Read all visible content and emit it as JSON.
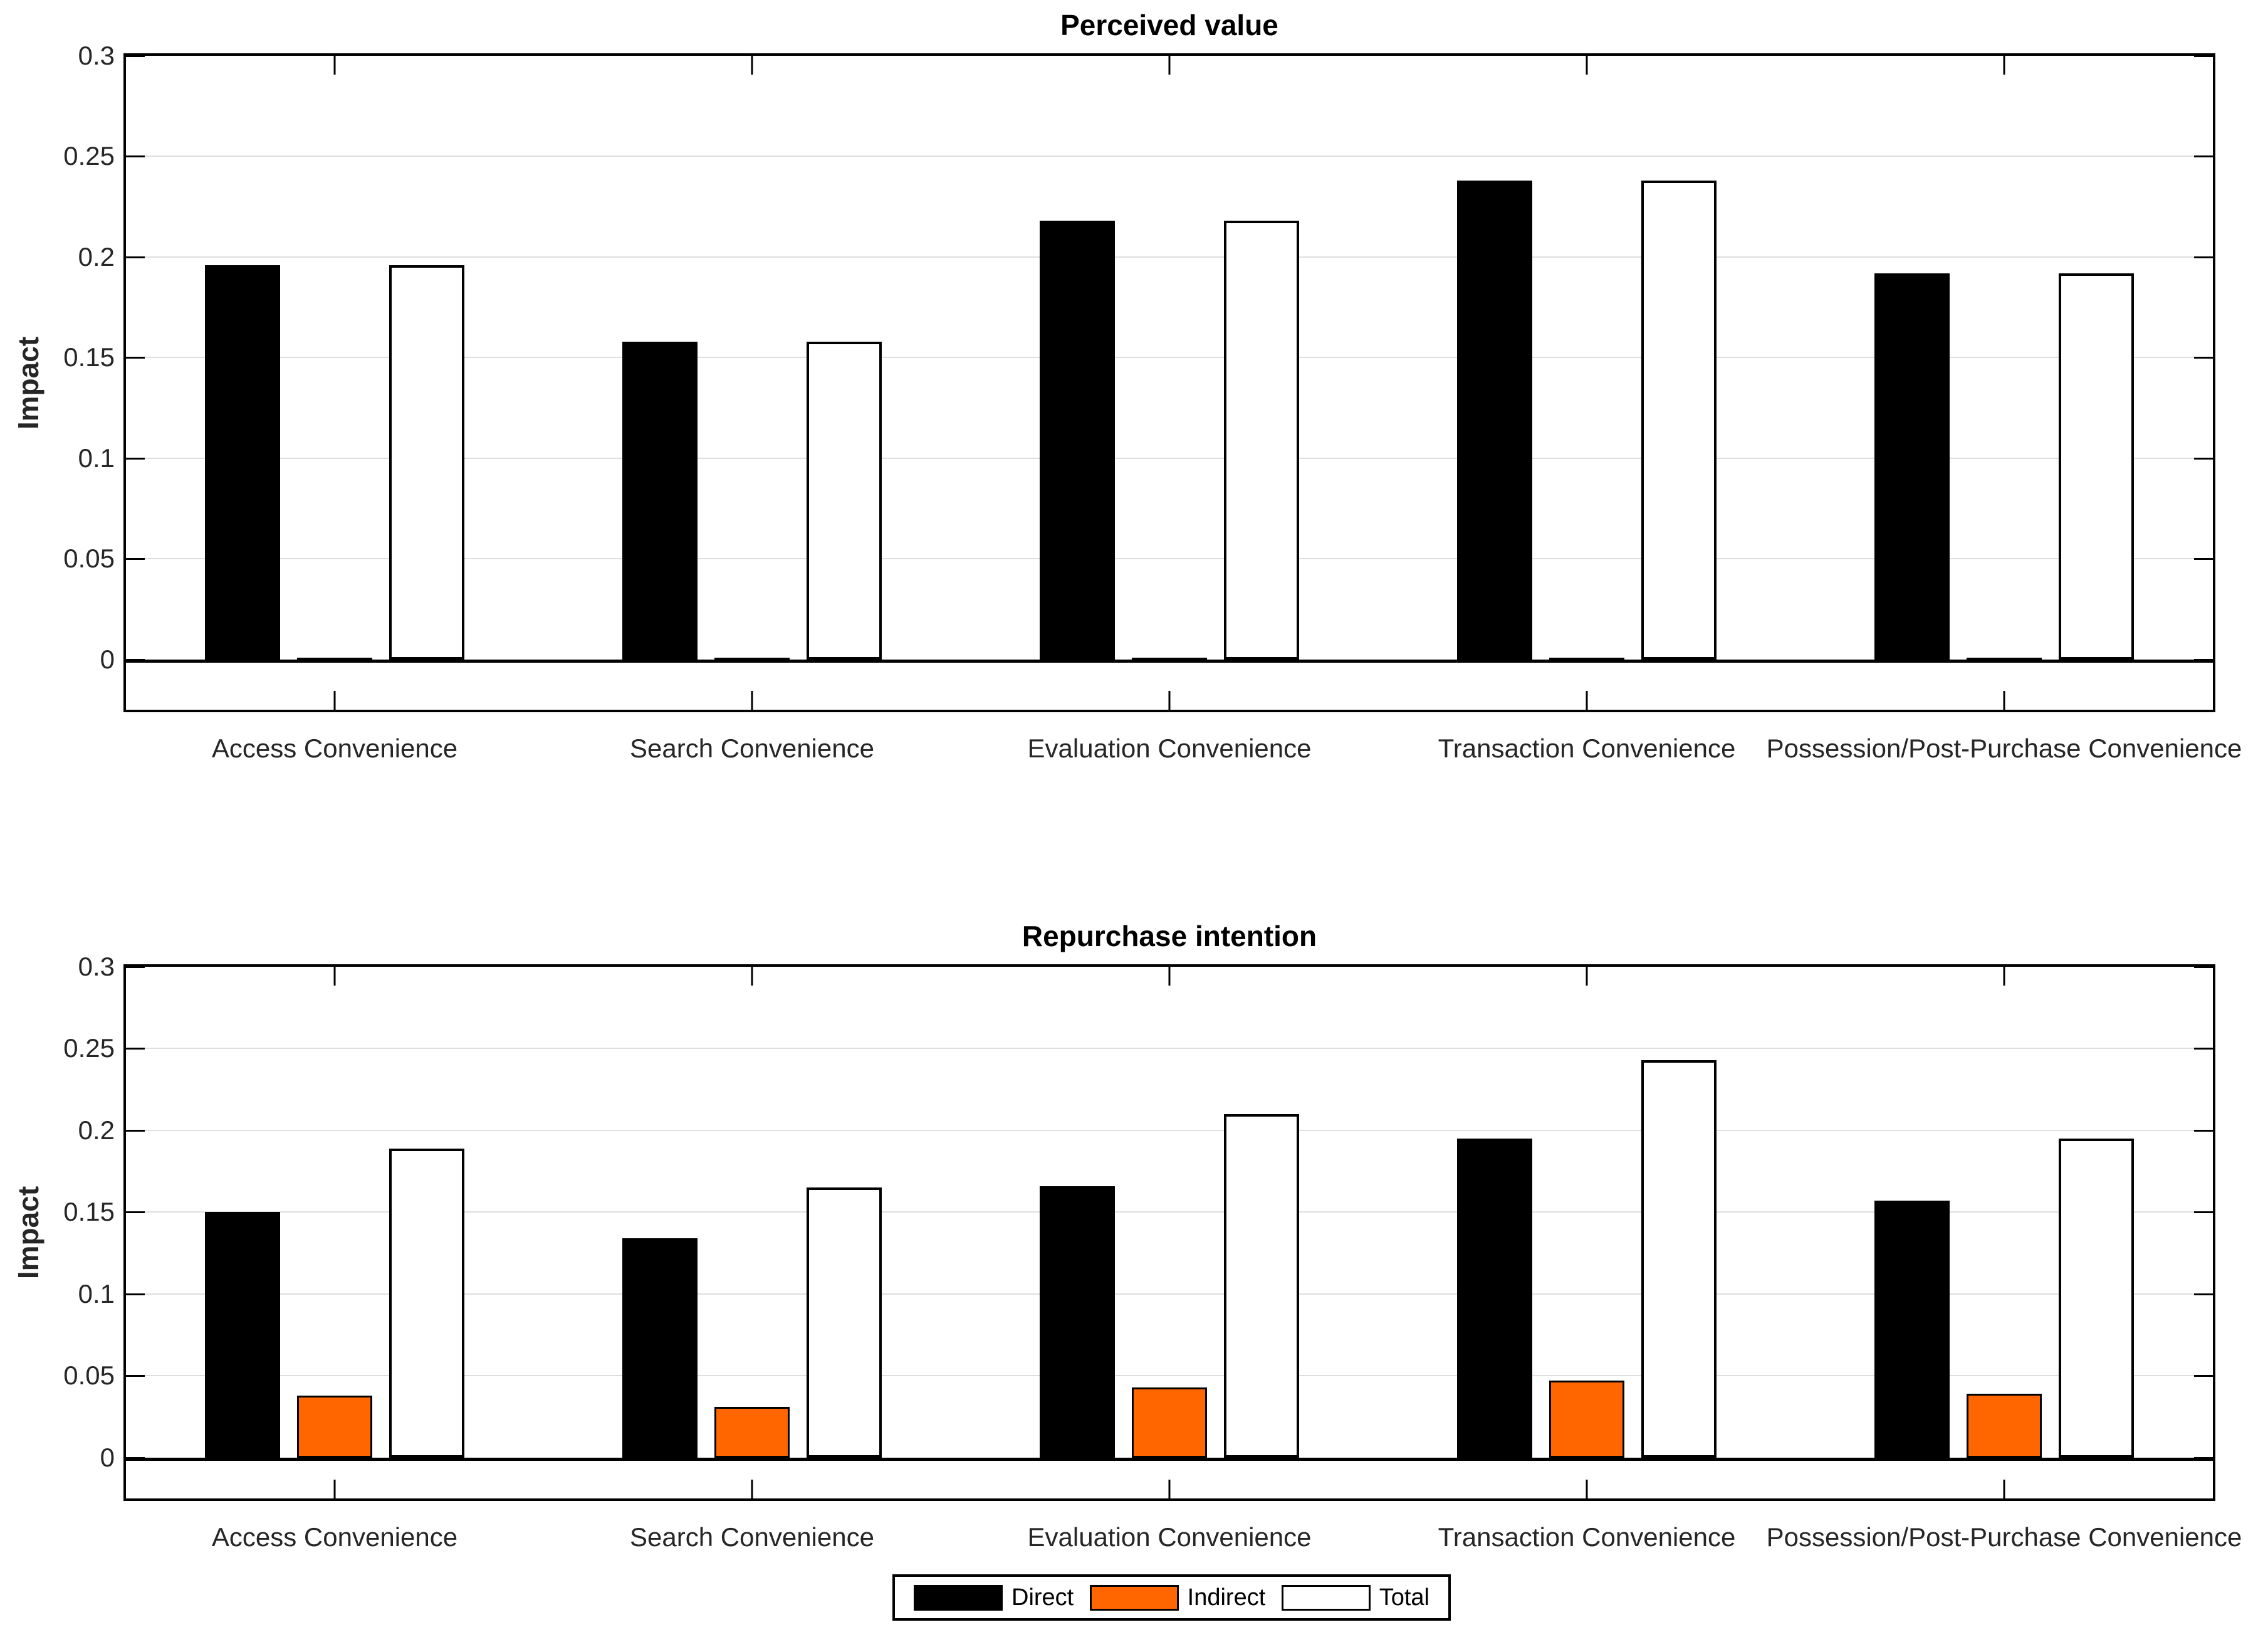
{
  "figure": {
    "background": "#ffffff"
  },
  "colors": {
    "direct": "#000000",
    "indirect": "#FF6600",
    "total_fill": "#FFFFFF",
    "bar_edge": "#000000",
    "grid": "#DEDEDE",
    "axis": "#000000",
    "tick_text": "#262626",
    "title_text": "#000000"
  },
  "legend": {
    "items": [
      {
        "label": "Direct",
        "swatch": "direct-swatch",
        "color": "#000000"
      },
      {
        "label": "Indirect",
        "swatch": "indirect-swatch",
        "color": "#FF6600"
      },
      {
        "label": "Total",
        "swatch": "total-swatch",
        "color": "#FFFFFF"
      }
    ]
  },
  "chart_data": [
    {
      "type": "bar",
      "title": "Perceived value",
      "xlabel": "",
      "ylabel": "Impact",
      "categories": [
        "Access Convenience",
        "Search Convenience",
        "Evaluation Convenience",
        "Transaction Convenience",
        "Possession/Post-Purchase Convenience"
      ],
      "series": [
        {
          "name": "Direct",
          "values": [
            0.196,
            0.158,
            0.218,
            0.238,
            0.192
          ]
        },
        {
          "name": "Indirect",
          "values": [
            0.001,
            0.001,
            0.001,
            0.001,
            0.001
          ]
        },
        {
          "name": "Total",
          "values": [
            0.196,
            0.158,
            0.218,
            0.238,
            0.192
          ]
        }
      ],
      "ylim": [
        -0.025,
        0.3
      ],
      "yticks": [
        0,
        0.05,
        0.1,
        0.15,
        0.2,
        0.25,
        0.3
      ],
      "ytick_labels": [
        "0",
        "0.05",
        "0.1",
        "0.15",
        "0.2",
        "0.25",
        "0.3"
      ],
      "grid": true,
      "legend_position": "none"
    },
    {
      "type": "bar",
      "title": "Repurchase intention",
      "xlabel": "",
      "ylabel": "Impact",
      "categories": [
        "Access Convenience",
        "Search Convenience",
        "Evaluation Convenience",
        "Transaction Convenience",
        "Possession/Post-Purchase Convenience"
      ],
      "series": [
        {
          "name": "Direct",
          "values": [
            0.15,
            0.134,
            0.166,
            0.195,
            0.157
          ]
        },
        {
          "name": "Indirect",
          "values": [
            0.038,
            0.031,
            0.043,
            0.047,
            0.039
          ]
        },
        {
          "name": "Total",
          "values": [
            0.189,
            0.165,
            0.21,
            0.243,
            0.195
          ]
        }
      ],
      "ylim": [
        -0.025,
        0.3
      ],
      "yticks": [
        0,
        0.05,
        0.1,
        0.15,
        0.2,
        0.25,
        0.3
      ],
      "ytick_labels": [
        "0",
        "0.05",
        "0.1",
        "0.15",
        "0.2",
        "0.25",
        "0.3"
      ],
      "grid": true,
      "legend_position": "below"
    }
  ]
}
